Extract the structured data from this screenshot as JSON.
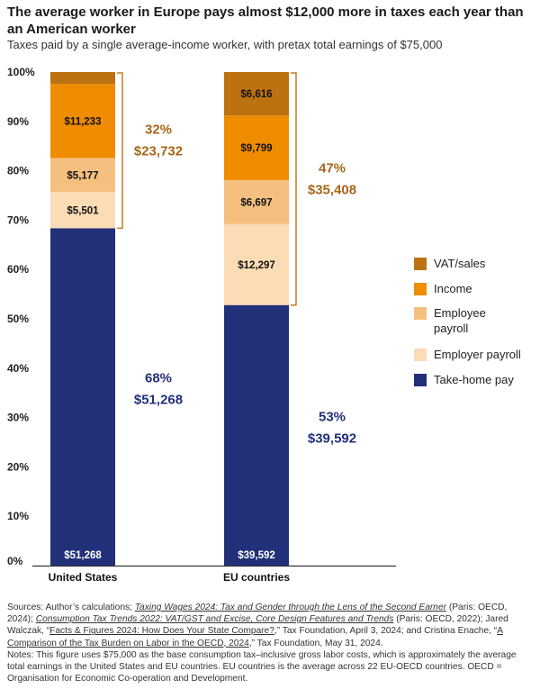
{
  "header": {
    "title": "The average worker in Europe pays almost $12,000 more in taxes each year than an American worker",
    "subtitle": "Taxes paid by a single average-income worker, with pretax total earnings of $75,000"
  },
  "chart_data": {
    "type": "bar",
    "stacked": true,
    "categories": [
      "United States",
      "EU countries"
    ],
    "series": [
      {
        "name": "Take-home pay",
        "color": "#22307a",
        "label_color": "#ffffff",
        "values": [
          68.36,
          52.79
        ],
        "labels": [
          "$51,268",
          "$39,592"
        ]
      },
      {
        "name": "Employer payroll",
        "color": "#fbdcb4",
        "label_color": "#111111",
        "values": [
          7.33,
          16.4
        ],
        "labels": [
          "$5,501",
          "$12,297"
        ]
      },
      {
        "name": "Employee payroll",
        "color": "#f5c07f",
        "label_color": "#111111",
        "values": [
          6.9,
          8.93
        ],
        "labels": [
          "$5,177",
          "$6,697"
        ]
      },
      {
        "name": "Income",
        "color": "#ef8c00",
        "label_color": "#111111",
        "values": [
          14.98,
          13.07
        ],
        "labels": [
          "$11,233",
          "$9,799"
        ]
      },
      {
        "name": "VAT/sales",
        "color": "#bd7212",
        "label_color": "#111111",
        "values": [
          2.43,
          8.82
        ],
        "labels": [
          "",
          "$6,616"
        ]
      }
    ],
    "ylim": [
      0,
      100
    ],
    "yticks": [
      "0%",
      "10%",
      "20%",
      "30%",
      "40%",
      "50%",
      "60%",
      "70%",
      "80%",
      "90%",
      "100%"
    ],
    "legend_order": [
      "VAT/sales",
      "Income",
      "Employee payroll",
      "Employer payroll",
      "Take-home pay"
    ],
    "legend_position": "right",
    "annotations": [
      {
        "bar": 0,
        "kind": "tax",
        "pct": "32%",
        "amount": "$23,732",
        "color": "#a8661a"
      },
      {
        "bar": 0,
        "kind": "takehome",
        "pct": "68%",
        "amount": "$51,268",
        "color": "#22307a"
      },
      {
        "bar": 1,
        "kind": "tax",
        "pct": "47%",
        "amount": "$35,408",
        "color": "#a8661a"
      },
      {
        "bar": 1,
        "kind": "takehome",
        "pct": "53%",
        "amount": "$39,592",
        "color": "#22307a"
      }
    ],
    "bracket_color": "#c77a1c"
  },
  "legend": {
    "items": [
      {
        "label": "VAT/sales",
        "color": "#bd7212"
      },
      {
        "label": "Income",
        "color": "#ef8c00"
      },
      {
        "label": "Employee payroll",
        "color": "#f5c07f"
      },
      {
        "label": "Employer payroll",
        "color": "#fbdcb4"
      },
      {
        "label": "Take-home pay",
        "color": "#22307a"
      }
    ]
  },
  "sources": {
    "p1": "Sources: Author’s calculations; ",
    "link1": "Taxing Wages 2024: Tax and Gender through the Lens of the Second Earner",
    "p2": " (Paris: OECD, 2024); ",
    "link2": "Consumption Tax Trends 2022: VAT/GST and Excise, Core Design Features and Trends",
    "p3": " (Paris: OECD, 2022); Jared Walczak, “",
    "link3": "Facts & Figures 2024: How Does Your State Compare?",
    "p4": ",” Tax Foundation, April 3, 2024; and Cristina Enache, “",
    "link4": "A Comparison of the Tax Burden on Labor in the OECD, 2024",
    "p5": ",” Tax Foundation, May 31, 2024.",
    "notes": "Notes: This figure uses $75,000 as the base consumption tax–inclusive gross labor costs, which is approximately the average total earnings in the United States and EU countries. EU countries is the average across 22 EU-OECD countries. OECD = Organisation for Economic Co-operation and Development."
  }
}
